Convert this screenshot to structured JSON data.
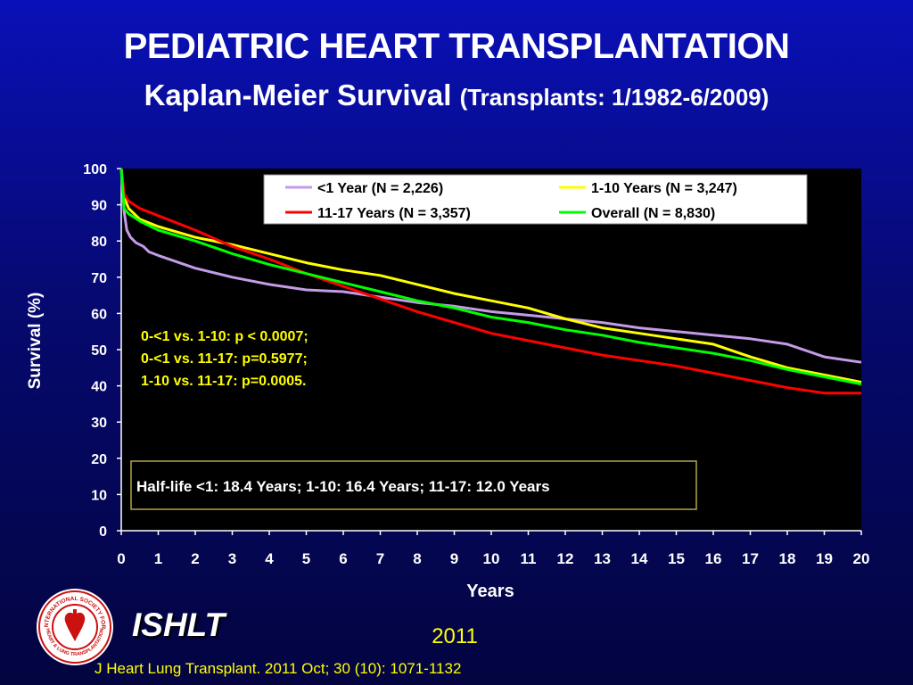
{
  "title": "PEDIATRIC HEART TRANSPLANTATION",
  "subtitle_main": "Kaplan-Meier Survival",
  "subtitle_paren": "(Transplants: 1/1982-6/2009)",
  "brand": "ISHLT",
  "year": "2011",
  "citation": "J Heart Lung Transplant. 2011 Oct; 30 (10): 1071-1132",
  "logo_icon": "ishlt-seal-icon",
  "logo_text_top": "INTERNATIONAL SOCIETY FOR",
  "logo_text_bottom": "HEART & LUNG TRANSPLANTATION",
  "colors": {
    "background": "#06096e",
    "plot_background": "#000000",
    "under1": "#c49be8",
    "y1to10": "#ffff00",
    "y11to17": "#ff0000",
    "overall": "#00ff00",
    "annotation_text": "#ffff00",
    "box_border": "#b5a642"
  },
  "chart_data": {
    "type": "line",
    "xlabel": "Years",
    "ylabel": "Survival (%)",
    "xlim": [
      0,
      20
    ],
    "ylim": [
      0,
      100
    ],
    "x_ticks": [
      "0",
      "1",
      "2",
      "3",
      "4",
      "5",
      "6",
      "7",
      "8",
      "9",
      "10",
      "11",
      "12",
      "13",
      "14",
      "15",
      "16",
      "17",
      "18",
      "19",
      "20"
    ],
    "y_ticks": [
      "0",
      "10",
      "20",
      "30",
      "40",
      "50",
      "60",
      "70",
      "80",
      "90",
      "100"
    ],
    "grid": false,
    "legend_position": "top",
    "series": [
      {
        "name": "<1 Year (N = 2,226)",
        "color_key": "under1",
        "x": [
          0,
          0.08,
          0.15,
          0.25,
          0.4,
          0.6,
          0.75,
          1,
          2,
          3,
          4,
          5,
          6,
          7,
          8,
          9,
          10,
          11,
          12,
          13,
          14,
          15,
          16,
          17,
          18,
          19,
          20
        ],
        "y": [
          100,
          88,
          83,
          81,
          79.5,
          78.5,
          77,
          76,
          72.5,
          70,
          68,
          66.5,
          66,
          64.5,
          63,
          62,
          60.5,
          59.5,
          58.5,
          57.5,
          56,
          55,
          54,
          53,
          51.5,
          48,
          46.5
        ]
      },
      {
        "name": "1-10 Years (N = 3,247)",
        "color_key": "y1to10",
        "x": [
          0,
          0.08,
          0.2,
          0.5,
          1,
          2,
          3,
          4,
          5,
          6,
          7,
          8,
          9,
          10,
          11,
          12,
          13,
          14,
          15,
          16,
          17,
          18,
          19,
          20
        ],
        "y": [
          100,
          92,
          89,
          86,
          84,
          81,
          79,
          76.5,
          74,
          72,
          70.5,
          68,
          65.5,
          63.5,
          61.5,
          58.5,
          56,
          54.5,
          53,
          51.5,
          48,
          45,
          43,
          41
        ]
      },
      {
        "name": "11-17 Years (N = 3,357)",
        "color_key": "y11to17",
        "x": [
          0,
          0.08,
          0.2,
          0.5,
          1,
          2,
          3,
          4,
          5,
          6,
          7,
          8,
          9,
          10,
          11,
          12,
          13,
          14,
          15,
          16,
          17,
          18,
          19,
          20
        ],
        "y": [
          100,
          93,
          91,
          89,
          87,
          83,
          78.5,
          75,
          71,
          67.5,
          64,
          60.5,
          57.5,
          54.5,
          52.5,
          50.5,
          48.5,
          47,
          45.5,
          43.5,
          41.5,
          39.5,
          38,
          38
        ]
      },
      {
        "name": "Overall (N = 8,830)",
        "color_key": "overall",
        "x": [
          0,
          0.08,
          0.2,
          0.5,
          1,
          2,
          3,
          4,
          5,
          6,
          7,
          8,
          9,
          10,
          11,
          12,
          13,
          14,
          15,
          16,
          17,
          18,
          19,
          20
        ],
        "y": [
          100,
          89,
          87.5,
          85.5,
          83,
          80,
          76.5,
          73.5,
          71,
          68.5,
          66,
          63.5,
          61.5,
          59,
          57.5,
          55.5,
          54,
          52,
          50.5,
          49,
          47,
          44.5,
          42.5,
          40.5
        ]
      }
    ],
    "annotations": [
      "0-<1 vs. 1-10: p < 0.0007;",
      "0-<1 vs. 11-17: p=0.5977;",
      "1-10 vs. 11-17: p=0.0005."
    ],
    "halflife_note": "Half-life <1: 18.4 Years; 1-10: 16.4 Years; 11-17: 12.0 Years"
  }
}
